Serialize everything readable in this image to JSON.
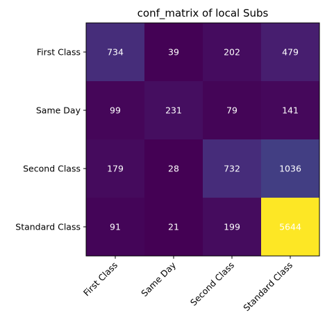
{
  "chart_data": {
    "type": "heatmap",
    "title": "conf_matrix of local Subs",
    "xlabel": "",
    "ylabel": "",
    "x_categories": [
      "First Class",
      "Same Day",
      "Second Class",
      "Standard Class"
    ],
    "y_categories": [
      "First Class",
      "Same Day",
      "Second Class",
      "Standard Class"
    ],
    "values": [
      [
        734,
        39,
        202,
        479
      ],
      [
        99,
        231,
        79,
        141
      ],
      [
        179,
        28,
        732,
        1036
      ],
      [
        91,
        21,
        199,
        5644
      ]
    ],
    "colormap": "viridis",
    "value_range": [
      21,
      5644
    ],
    "annotation_color": "#ffffff",
    "grid": false
  }
}
